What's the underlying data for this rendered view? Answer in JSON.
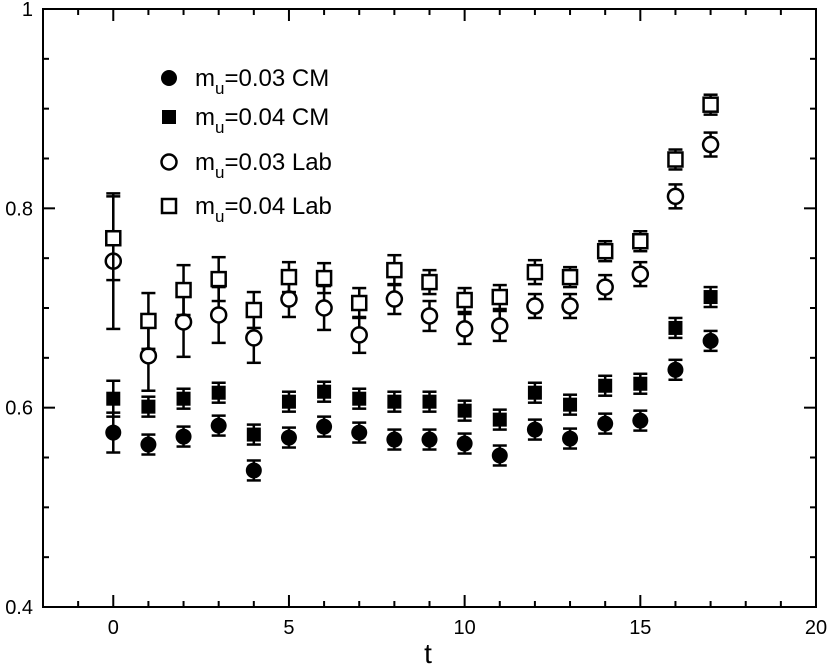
{
  "chart_data": {
    "type": "scatter",
    "xlabel": "t",
    "ylabel": "",
    "xlim": [
      -2,
      20
    ],
    "ylim": [
      0.4,
      1.0
    ],
    "x_ticks": [
      0,
      5,
      10,
      15,
      20
    ],
    "y_ticks": [
      0.4,
      0.6,
      0.8,
      1.0
    ],
    "x_tick_labels": [
      "0",
      "5",
      "10",
      "15",
      "20"
    ],
    "y_tick_labels": [
      "0.4",
      "0.6",
      "0.8",
      "1"
    ],
    "legend_position": "top-left",
    "series": [
      {
        "name": "m_u=0.03 CM",
        "legend_main": "m",
        "legend_sub": "u",
        "legend_rest": "=0.03 CM",
        "marker": "circle-filled",
        "x": [
          0,
          1,
          2,
          3,
          4,
          5,
          6,
          7,
          8,
          9,
          10,
          11,
          12,
          13,
          14,
          15,
          16,
          17
        ],
        "y": [
          0.575,
          0.563,
          0.571,
          0.582,
          0.537,
          0.57,
          0.581,
          0.575,
          0.568,
          0.568,
          0.564,
          0.552,
          0.578,
          0.569,
          0.584,
          0.587,
          0.638,
          0.667
        ],
        "err": [
          0.02,
          0.01,
          0.01,
          0.01,
          0.01,
          0.01,
          0.01,
          0.01,
          0.01,
          0.01,
          0.01,
          0.01,
          0.01,
          0.01,
          0.01,
          0.01,
          0.01,
          0.01
        ]
      },
      {
        "name": "m_u=0.04 CM",
        "legend_main": "m",
        "legend_sub": "u",
        "legend_rest": "=0.04 CM",
        "marker": "square-filled",
        "x": [
          0,
          1,
          2,
          3,
          4,
          5,
          6,
          7,
          8,
          9,
          10,
          11,
          12,
          13,
          14,
          15,
          16,
          17
        ],
        "y": [
          0.609,
          0.601,
          0.609,
          0.615,
          0.573,
          0.606,
          0.616,
          0.609,
          0.606,
          0.606,
          0.597,
          0.588,
          0.615,
          0.603,
          0.622,
          0.624,
          0.68,
          0.711
        ],
        "err": [
          0.018,
          0.01,
          0.01,
          0.01,
          0.01,
          0.01,
          0.01,
          0.01,
          0.01,
          0.01,
          0.01,
          0.01,
          0.01,
          0.01,
          0.01,
          0.01,
          0.01,
          0.01
        ]
      },
      {
        "name": "m_u=0.03 Lab",
        "legend_main": "m",
        "legend_sub": "u",
        "legend_rest": "=0.03 Lab",
        "marker": "circle-open",
        "x": [
          0,
          1,
          2,
          3,
          4,
          5,
          6,
          7,
          8,
          9,
          10,
          11,
          12,
          13,
          14,
          15,
          16,
          17
        ],
        "y": [
          0.747,
          0.652,
          0.686,
          0.693,
          0.67,
          0.709,
          0.7,
          0.673,
          0.709,
          0.692,
          0.679,
          0.682,
          0.702,
          0.702,
          0.721,
          0.734,
          0.812,
          0.864
        ],
        "err": [
          0.068,
          0.035,
          0.035,
          0.028,
          0.025,
          0.018,
          0.022,
          0.018,
          0.015,
          0.015,
          0.015,
          0.015,
          0.012,
          0.012,
          0.012,
          0.012,
          0.012,
          0.012
        ]
      },
      {
        "name": "m_u=0.04 Lab",
        "legend_main": "m",
        "legend_sub": "u",
        "legend_rest": "=0.04 Lab",
        "marker": "square-open",
        "x": [
          0,
          1,
          2,
          3,
          4,
          5,
          6,
          7,
          8,
          9,
          10,
          11,
          12,
          13,
          14,
          15,
          16,
          17
        ],
        "y": [
          0.77,
          0.687,
          0.718,
          0.729,
          0.698,
          0.731,
          0.73,
          0.705,
          0.738,
          0.726,
          0.708,
          0.711,
          0.736,
          0.731,
          0.757,
          0.767,
          0.849,
          0.904
        ],
        "err": [
          0.042,
          0.028,
          0.025,
          0.022,
          0.018,
          0.015,
          0.015,
          0.015,
          0.015,
          0.012,
          0.012,
          0.012,
          0.012,
          0.01,
          0.01,
          0.01,
          0.01,
          0.01
        ]
      }
    ]
  }
}
